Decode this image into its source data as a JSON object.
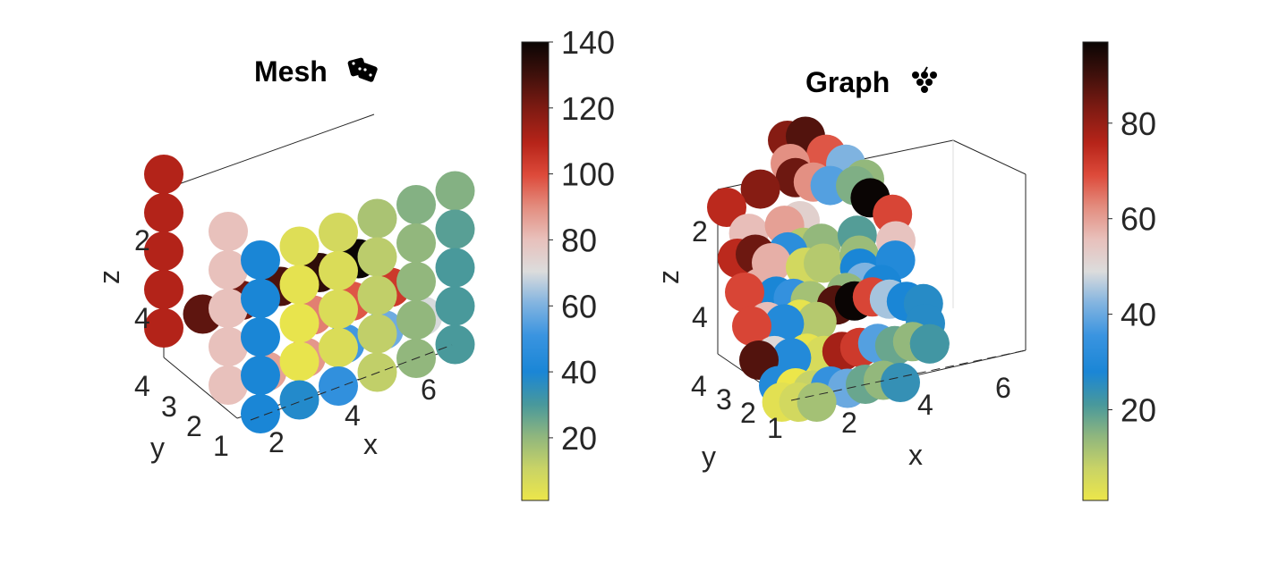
{
  "chart_data": [
    {
      "type": "scatter",
      "title": "Mesh",
      "title_icon": "dice-icon",
      "xlabel": "x",
      "ylabel": "y",
      "zlabel": "z",
      "x_ticks": [
        "2",
        "4",
        "6"
      ],
      "y_ticks": [
        "1",
        "2",
        "3",
        "4"
      ],
      "z_ticks": [
        "2",
        "4"
      ],
      "colorbar": {
        "ticks": [
          "20",
          "40",
          "60",
          "80",
          "100",
          "120",
          "140"
        ],
        "range": [
          1,
          140
        ]
      },
      "markers": [
        {
          "x": 1,
          "y": 4,
          "z": 1,
          "v": 110
        },
        {
          "x": 2,
          "y": 4,
          "z": 1,
          "v": 125
        },
        {
          "x": 3,
          "y": 4,
          "z": 1,
          "v": 122
        },
        {
          "x": 4,
          "y": 4,
          "z": 1,
          "v": 128
        },
        {
          "x": 5,
          "y": 4,
          "z": 1,
          "v": 133
        },
        {
          "x": 6,
          "y": 4,
          "z": 1,
          "v": 140
        },
        {
          "x": 6,
          "y": 3,
          "z": 1,
          "v": 104
        },
        {
          "x": 6,
          "y": 2,
          "z": 1,
          "v": 70
        },
        {
          "x": 6,
          "y": 1,
          "z": 1,
          "v": 30
        },
        {
          "x": 4,
          "y": 3,
          "z": 1,
          "v": 92
        },
        {
          "x": 5,
          "y": 3,
          "z": 1,
          "v": 98
        },
        {
          "x": 3,
          "y": 2,
          "z": 1,
          "v": 88
        },
        {
          "x": 5,
          "y": 2,
          "z": 1,
          "v": 58
        },
        {
          "x": 4,
          "y": 2,
          "z": 1,
          "v": 52
        },
        {
          "x": 1,
          "y": 4,
          "z": 2,
          "v": 110
        },
        {
          "x": 1,
          "y": 4,
          "z": 3,
          "v": 110
        },
        {
          "x": 1,
          "y": 4,
          "z": 4,
          "v": 110
        },
        {
          "x": 1,
          "y": 4,
          "z": 5,
          "v": 110
        },
        {
          "x": 1,
          "y": 2,
          "z": 1,
          "v": 80
        },
        {
          "x": 1,
          "y": 2,
          "z": 2,
          "v": 80
        },
        {
          "x": 1,
          "y": 2,
          "z": 3,
          "v": 80
        },
        {
          "x": 1,
          "y": 2,
          "z": 4,
          "v": 80
        },
        {
          "x": 1,
          "y": 2,
          "z": 5,
          "v": 80
        },
        {
          "x": 2,
          "y": 2,
          "z": 1,
          "v": 86
        },
        {
          "x": 2,
          "y": 1,
          "z": 1,
          "v": 38
        },
        {
          "x": 1,
          "y": 1,
          "z": 1,
          "v": 40
        },
        {
          "x": 1,
          "y": 1,
          "z": 2,
          "v": 40
        },
        {
          "x": 1,
          "y": 1,
          "z": 3,
          "v": 40
        },
        {
          "x": 1,
          "y": 1,
          "z": 4,
          "v": 40
        },
        {
          "x": 1,
          "y": 1,
          "z": 5,
          "v": 40
        },
        {
          "x": 3,
          "y": 1,
          "z": 1,
          "v": 48
        },
        {
          "x": 4,
          "y": 1,
          "z": 1,
          "v": 12
        },
        {
          "x": 5,
          "y": 1,
          "z": 1,
          "v": 20
        },
        {
          "x": 6,
          "y": 1,
          "z": 2,
          "v": 30
        },
        {
          "x": 6,
          "y": 1,
          "z": 3,
          "v": 30
        },
        {
          "x": 6,
          "y": 1,
          "z": 4,
          "v": 28
        },
        {
          "x": 6,
          "y": 1,
          "z": 5,
          "v": 22
        },
        {
          "x": 5,
          "y": 1,
          "z": 2,
          "v": 20
        },
        {
          "x": 5,
          "y": 1,
          "z": 3,
          "v": 20
        },
        {
          "x": 5,
          "y": 1,
          "z": 4,
          "v": 20
        },
        {
          "x": 5,
          "y": 1,
          "z": 5,
          "v": 22
        },
        {
          "x": 4,
          "y": 1,
          "z": 2,
          "v": 12
        },
        {
          "x": 4,
          "y": 1,
          "z": 3,
          "v": 12
        },
        {
          "x": 4,
          "y": 1,
          "z": 4,
          "v": 13
        },
        {
          "x": 4,
          "y": 1,
          "z": 5,
          "v": 16
        },
        {
          "x": 3,
          "y": 1,
          "z": 2,
          "v": 6
        },
        {
          "x": 3,
          "y": 1,
          "z": 3,
          "v": 6
        },
        {
          "x": 3,
          "y": 1,
          "z": 4,
          "v": 6
        },
        {
          "x": 3,
          "y": 1,
          "z": 5,
          "v": 8
        },
        {
          "x": 2,
          "y": 1,
          "z": 2,
          "v": 2
        },
        {
          "x": 2,
          "y": 1,
          "z": 3,
          "v": 2
        },
        {
          "x": 2,
          "y": 1,
          "z": 4,
          "v": 3
        },
        {
          "x": 2,
          "y": 1,
          "z": 5,
          "v": 5
        }
      ]
    },
    {
      "type": "scatter",
      "title": "Graph",
      "title_icon": "grapes-icon",
      "xlabel": "x",
      "ylabel": "y",
      "zlabel": "z",
      "x_ticks": [
        "2",
        "4",
        "6"
      ],
      "y_ticks": [
        "1",
        "2",
        "3",
        "4"
      ],
      "z_ticks": [
        "2",
        "4"
      ],
      "colorbar": {
        "ticks": [
          "20",
          "40",
          "60",
          "80"
        ],
        "range": [
          1,
          97
        ]
      },
      "markers": [
        {
          "x": 3,
          "y": 4,
          "z": 0,
          "v": 82
        },
        {
          "x": 3.5,
          "y": 4,
          "z": 0,
          "v": 88
        },
        {
          "x": 3,
          "y": 3.5,
          "z": 0.5,
          "v": 62
        },
        {
          "x": 4,
          "y": 3.6,
          "z": 0.5,
          "v": 68
        },
        {
          "x": 4.5,
          "y": 3.3,
          "z": 0.8,
          "v": 42
        },
        {
          "x": 4,
          "y": 3,
          "z": 1.2,
          "v": 38
        },
        {
          "x": 4.7,
          "y": 2.8,
          "z": 1.3,
          "v": 16
        },
        {
          "x": 5,
          "y": 2.6,
          "z": 1.1,
          "v": 14
        },
        {
          "x": 1,
          "y": 4,
          "z": 1.5,
          "v": 75
        },
        {
          "x": 2,
          "y": 4,
          "z": 1.2,
          "v": 82
        },
        {
          "x": 3,
          "y": 4,
          "z": 1.1,
          "v": 85
        },
        {
          "x": 3.5,
          "y": 3.6,
          "z": 1.2,
          "v": 62
        },
        {
          "x": 5,
          "y": 3,
          "z": 1.8,
          "v": 97
        },
        {
          "x": 1.5,
          "y": 3.5,
          "z": 2.2,
          "v": 56
        },
        {
          "x": 2.5,
          "y": 3.5,
          "z": 2.2,
          "v": 60
        },
        {
          "x": 3,
          "y": 3,
          "z": 2,
          "v": 52
        },
        {
          "x": 5.5,
          "y": 3,
          "z": 2.4,
          "v": 70
        },
        {
          "x": 1.5,
          "y": 3,
          "z": 2.8,
          "v": 30
        },
        {
          "x": 2.5,
          "y": 3,
          "z": 2.8,
          "v": 32
        },
        {
          "x": 3,
          "y": 2.5,
          "z": 2.6,
          "v": 10
        },
        {
          "x": 3.5,
          "y": 2.5,
          "z": 2.6,
          "v": 14
        },
        {
          "x": 4.5,
          "y": 2.5,
          "z": 2.6,
          "v": 20
        },
        {
          "x": 5.5,
          "y": 2.5,
          "z": 3,
          "v": 55
        },
        {
          "x": 1,
          "y": 4,
          "z": 3,
          "v": 75
        },
        {
          "x": 1.5,
          "y": 4,
          "z": 3,
          "v": 85
        },
        {
          "x": 2,
          "y": 3,
          "z": 3,
          "v": 58
        },
        {
          "x": 3,
          "y": 2,
          "z": 3,
          "v": 6
        },
        {
          "x": 3.5,
          "y": 2,
          "z": 3,
          "v": 10
        },
        {
          "x": 4.5,
          "y": 2,
          "z": 3,
          "v": 13
        },
        {
          "x": 4.5,
          "y": 1.5,
          "z": 3.2,
          "v": 28
        },
        {
          "x": 5.5,
          "y": 1.5,
          "z": 3.2,
          "v": 30
        },
        {
          "x": 1,
          "y": 4,
          "z": 4,
          "v": 70
        },
        {
          "x": 1.5,
          "y": 3.5,
          "z": 3.8,
          "v": 58
        },
        {
          "x": 2,
          "y": 2.5,
          "z": 3.8,
          "v": 28
        },
        {
          "x": 2.5,
          "y": 2,
          "z": 3.8,
          "v": 34
        },
        {
          "x": 3,
          "y": 1.5,
          "z": 3.8,
          "v": 12
        },
        {
          "x": 4,
          "y": 1.5,
          "z": 3.8,
          "v": 14
        },
        {
          "x": 4.5,
          "y": 2,
          "z": 3.8,
          "v": 42
        },
        {
          "x": 5,
          "y": 1.5,
          "z": 3.8,
          "v": 28
        },
        {
          "x": 1,
          "y": 4,
          "z": 5,
          "v": 70
        },
        {
          "x": 1.5,
          "y": 3.5,
          "z": 4.8,
          "v": 56
        },
        {
          "x": 2,
          "y": 3,
          "z": 4.8,
          "v": 30
        },
        {
          "x": 2.5,
          "y": 2.5,
          "z": 4.6,
          "v": 2
        },
        {
          "x": 3,
          "y": 2,
          "z": 4.6,
          "v": 10
        },
        {
          "x": 3.5,
          "y": 3,
          "z": 4.6,
          "v": 88
        },
        {
          "x": 4,
          "y": 3,
          "z": 4.6,
          "v": 97
        },
        {
          "x": 4.5,
          "y": 3,
          "z": 4.6,
          "v": 70
        },
        {
          "x": 5,
          "y": 2.5,
          "z": 4.6,
          "v": 45
        },
        {
          "x": 5.5,
          "y": 2,
          "z": 4.6,
          "v": 28
        },
        {
          "x": 6,
          "y": 1.5,
          "z": 4.6,
          "v": 26
        },
        {
          "x": 1,
          "y": 4,
          "z": 6,
          "v": 88
        },
        {
          "x": 1.5,
          "y": 3.5,
          "z": 5.8,
          "v": 50
        },
        {
          "x": 2,
          "y": 3,
          "z": 5.8,
          "v": 30
        },
        {
          "x": 2.5,
          "y": 2.5,
          "z": 5.6,
          "v": 2
        },
        {
          "x": 3,
          "y": 2,
          "z": 5.6,
          "v": 5
        },
        {
          "x": 3.5,
          "y": 2,
          "z": 5.6,
          "v": 78
        },
        {
          "x": 4,
          "y": 2,
          "z": 5.6,
          "v": 72
        },
        {
          "x": 4.5,
          "y": 2,
          "z": 5.6,
          "v": 38
        },
        {
          "x": 5,
          "y": 1.5,
          "z": 5.6,
          "v": 18
        },
        {
          "x": 5.5,
          "y": 1.5,
          "z": 5.6,
          "v": 14
        },
        {
          "x": 6,
          "y": 1,
          "z": 5.6,
          "v": 22
        },
        {
          "x": 6,
          "y": 1,
          "z": 5,
          "v": 26
        },
        {
          "x": 6,
          "y": 1,
          "z": 5.6,
          "v": 22
        },
        {
          "x": 1.5,
          "y": 3,
          "z": 6.5,
          "v": 30
        },
        {
          "x": 2,
          "y": 2.5,
          "z": 6.5,
          "v": 1
        },
        {
          "x": 2.5,
          "y": 2,
          "z": 6.5,
          "v": 8
        },
        {
          "x": 3,
          "y": 2,
          "z": 6.5,
          "v": 34
        },
        {
          "x": 3.5,
          "y": 1.5,
          "z": 6.5,
          "v": 40
        },
        {
          "x": 4,
          "y": 1.5,
          "z": 6.5,
          "v": 18
        },
        {
          "x": 4.5,
          "y": 1.5,
          "z": 6.5,
          "v": 14
        },
        {
          "x": 5,
          "y": 1,
          "z": 6.5,
          "v": 24
        },
        {
          "x": 1.5,
          "y": 2,
          "z": 7.2,
          "v": 3
        },
        {
          "x": 2,
          "y": 1.5,
          "z": 7.2,
          "v": 6
        },
        {
          "x": 2.5,
          "y": 1.5,
          "z": 7.2,
          "v": 12
        }
      ]
    }
  ]
}
